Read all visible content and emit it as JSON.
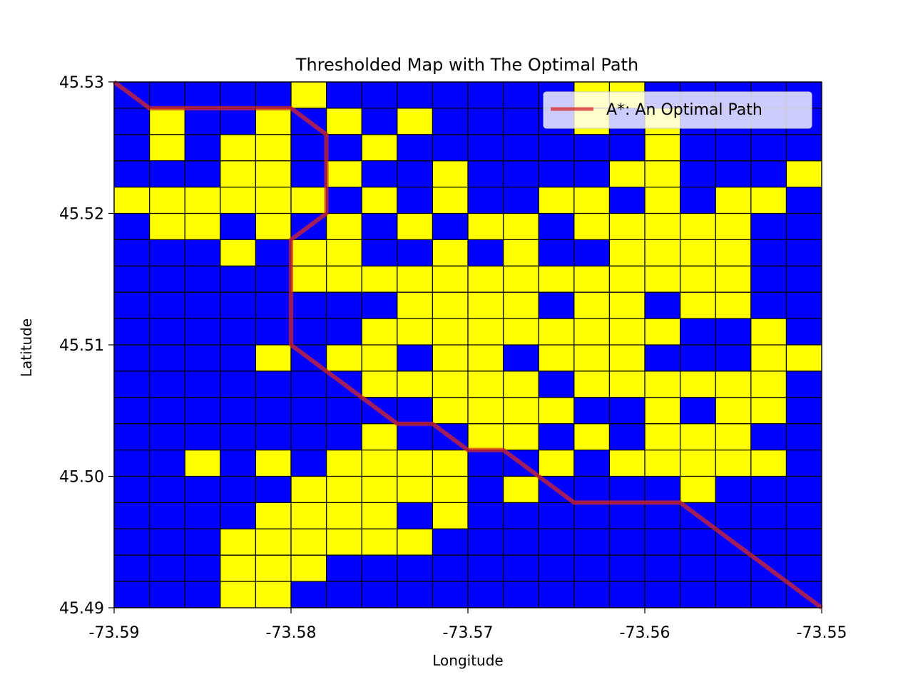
{
  "chart_data": {
    "type": "heatmap",
    "title": "Thresholded Map with The Optimal Path",
    "xlabel": "Longitude",
    "ylabel": "Latitude",
    "xlim": [
      -73.59,
      -73.55
    ],
    "ylim": [
      45.49,
      45.53
    ],
    "x_ticks": [
      -73.59,
      -73.58,
      -73.57,
      -73.56,
      -73.55
    ],
    "x_tick_labels": [
      "-73.59",
      "-73.58",
      "-73.57",
      "-73.56",
      "-73.55"
    ],
    "y_ticks": [
      45.49,
      45.5,
      45.51,
      45.52,
      45.53
    ],
    "y_tick_labels": [
      "45.49",
      "45.50",
      "45.51",
      "45.52",
      "45.53"
    ],
    "grid_columns": 20,
    "grid_rows": 20,
    "grid_row_order": "top-to-bottom",
    "cell_colors": {
      "0": "#0000ff",
      "1": "#ffff00"
    },
    "grid_line_color": "#000000",
    "grid": [
      [
        0,
        0,
        0,
        0,
        0,
        1,
        0,
        0,
        0,
        0,
        0,
        0,
        0,
        1,
        1,
        0,
        0,
        0,
        0,
        0
      ],
      [
        0,
        1,
        0,
        0,
        1,
        0,
        1,
        0,
        1,
        0,
        0,
        0,
        0,
        1,
        0,
        1,
        0,
        0,
        0,
        0
      ],
      [
        0,
        1,
        0,
        1,
        1,
        0,
        0,
        1,
        0,
        0,
        0,
        0,
        0,
        0,
        0,
        1,
        0,
        0,
        0,
        0
      ],
      [
        0,
        0,
        0,
        1,
        1,
        0,
        1,
        0,
        0,
        1,
        0,
        0,
        0,
        0,
        1,
        1,
        0,
        0,
        0,
        1
      ],
      [
        1,
        1,
        1,
        1,
        1,
        1,
        0,
        1,
        0,
        1,
        0,
        0,
        1,
        1,
        0,
        1,
        0,
        1,
        1,
        0
      ],
      [
        0,
        1,
        1,
        0,
        1,
        0,
        1,
        0,
        1,
        0,
        1,
        1,
        0,
        1,
        1,
        1,
        1,
        1,
        0,
        0
      ],
      [
        0,
        0,
        0,
        1,
        0,
        1,
        1,
        0,
        0,
        1,
        0,
        1,
        0,
        0,
        1,
        1,
        1,
        1,
        0,
        0
      ],
      [
        0,
        0,
        0,
        0,
        0,
        1,
        1,
        1,
        1,
        1,
        1,
        1,
        1,
        1,
        1,
        1,
        1,
        1,
        0,
        0
      ],
      [
        0,
        0,
        0,
        0,
        0,
        0,
        0,
        0,
        1,
        1,
        1,
        1,
        0,
        1,
        1,
        0,
        1,
        1,
        0,
        0
      ],
      [
        0,
        0,
        0,
        0,
        0,
        0,
        0,
        1,
        1,
        1,
        1,
        1,
        1,
        1,
        1,
        1,
        0,
        0,
        1,
        0
      ],
      [
        0,
        0,
        0,
        0,
        1,
        0,
        1,
        1,
        0,
        1,
        1,
        0,
        1,
        1,
        1,
        0,
        0,
        0,
        1,
        1
      ],
      [
        0,
        0,
        0,
        0,
        0,
        0,
        0,
        1,
        1,
        1,
        1,
        1,
        0,
        1,
        1,
        1,
        1,
        1,
        1,
        0
      ],
      [
        0,
        0,
        0,
        0,
        0,
        0,
        0,
        0,
        0,
        1,
        1,
        1,
        1,
        0,
        0,
        1,
        0,
        1,
        1,
        0
      ],
      [
        0,
        0,
        0,
        0,
        0,
        0,
        0,
        1,
        0,
        0,
        1,
        1,
        0,
        1,
        0,
        1,
        1,
        1,
        0,
        0
      ],
      [
        0,
        0,
        1,
        0,
        1,
        0,
        1,
        1,
        1,
        1,
        0,
        0,
        1,
        0,
        1,
        1,
        1,
        1,
        1,
        0
      ],
      [
        0,
        0,
        0,
        0,
        0,
        1,
        1,
        1,
        1,
        1,
        0,
        1,
        0,
        0,
        0,
        0,
        1,
        0,
        0,
        0
      ],
      [
        0,
        0,
        0,
        0,
        1,
        1,
        1,
        1,
        0,
        1,
        0,
        0,
        0,
        0,
        0,
        0,
        0,
        0,
        0,
        0
      ],
      [
        0,
        0,
        0,
        1,
        1,
        1,
        1,
        1,
        1,
        0,
        0,
        0,
        0,
        0,
        0,
        0,
        0,
        0,
        0,
        0
      ],
      [
        0,
        0,
        0,
        1,
        1,
        1,
        0,
        0,
        0,
        0,
        0,
        0,
        0,
        0,
        0,
        0,
        0,
        0,
        0,
        0
      ],
      [
        0,
        0,
        0,
        1,
        1,
        0,
        0,
        0,
        0,
        0,
        0,
        0,
        0,
        0,
        0,
        0,
        0,
        0,
        0,
        0
      ]
    ],
    "series": [
      {
        "name": "A*: An Optimal Path",
        "color": "#d62728",
        "x": [
          -73.59,
          -73.588,
          -73.58,
          -73.578,
          -73.578,
          -73.58,
          -73.58,
          -73.578,
          -73.576,
          -73.574,
          -73.572,
          -73.57,
          -73.568,
          -73.566,
          -73.564,
          -73.558,
          -73.556,
          -73.554,
          -73.552,
          -73.55
        ],
        "y": [
          45.53,
          45.528,
          45.528,
          45.526,
          45.52,
          45.518,
          45.51,
          45.508,
          45.506,
          45.504,
          45.504,
          45.502,
          45.502,
          45.5,
          45.498,
          45.498,
          45.496,
          45.494,
          45.492,
          45.49
        ]
      }
    ],
    "legend_position": "upper-right"
  }
}
